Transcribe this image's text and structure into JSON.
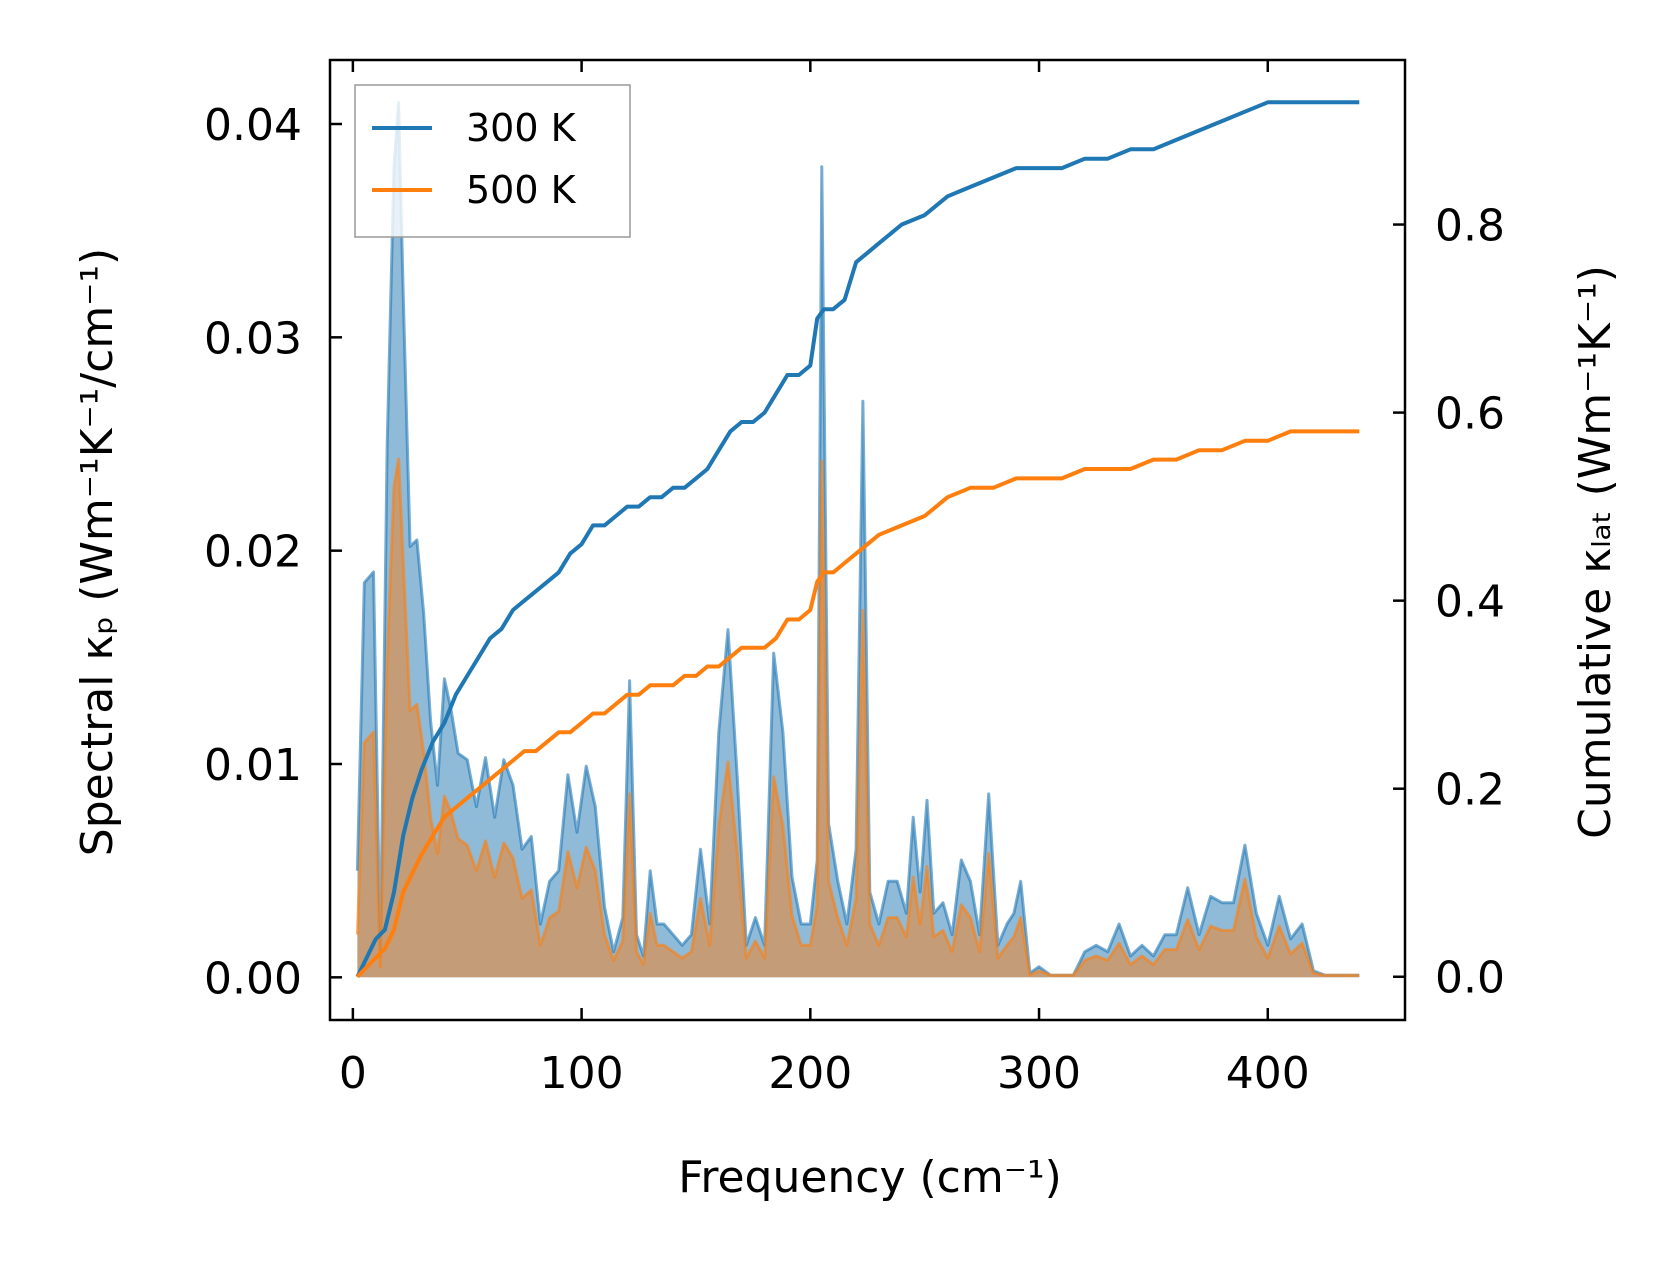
{
  "chart_data": {
    "type": "line",
    "title": "",
    "xlabel": "Frequency (cm⁻¹)",
    "ylabel_left": "Spectral κₚ (Wm⁻¹K⁻¹/cm⁻¹)",
    "ylabel_right": "Cumulative κₗₐₜ (Wm⁻¹K⁻¹)",
    "xlim": [
      -10,
      460
    ],
    "ylim_left": [
      -0.002,
      0.043
    ],
    "ylim_right": [
      -0.046,
      0.975
    ],
    "x_ticks": [
      0,
      100,
      200,
      300,
      400
    ],
    "x_tick_labels": [
      "0",
      "100",
      "200",
      "300",
      "400"
    ],
    "y_left_ticks": [
      0.0,
      0.01,
      0.02,
      0.03,
      0.04
    ],
    "y_left_tick_labels": [
      "0.00",
      "0.01",
      "0.02",
      "0.03",
      "0.04"
    ],
    "y_right_ticks": [
      0.0,
      0.2,
      0.4,
      0.6,
      0.8
    ],
    "y_right_tick_labels": [
      "0.0",
      "0.2",
      "0.4",
      "0.6",
      "0.8"
    ],
    "legend": {
      "position": "top-left",
      "entries": [
        "300 K",
        "500 K"
      ]
    },
    "colors": {
      "s300": "#1f77b4",
      "s500": "#ff7f0e",
      "fill300": "#1f77b4",
      "fill500": "#d1955e"
    },
    "series": [
      {
        "name": "300 K",
        "spectral_x": [
          2,
          5,
          9,
          12,
          15,
          18,
          20,
          22,
          25,
          28,
          31,
          34,
          37,
          40,
          43,
          46,
          50,
          54,
          58,
          62,
          66,
          70,
          74,
          78,
          82,
          86,
          90,
          94,
          98,
          102,
          106,
          110,
          114,
          118,
          121,
          124,
          127,
          130,
          133,
          136,
          140,
          144,
          148,
          152,
          156,
          160,
          164,
          168,
          172,
          176,
          180,
          184,
          188,
          192,
          196,
          200,
          203,
          205,
          208,
          212,
          216,
          220,
          223,
          226,
          230,
          234,
          238,
          242,
          245,
          248,
          251,
          254,
          258,
          262,
          266,
          270,
          274,
          278,
          282,
          286,
          289,
          292,
          296,
          300,
          305,
          310,
          315,
          320,
          325,
          330,
          335,
          340,
          345,
          350,
          355,
          360,
          365,
          370,
          375,
          380,
          385,
          390,
          395,
          400,
          405,
          410,
          415,
          420,
          425,
          430,
          435,
          440
        ],
        "spectral_y": [
          0.005,
          0.0185,
          0.019,
          0.001,
          0.025,
          0.038,
          0.041,
          0.032,
          0.0202,
          0.0205,
          0.017,
          0.012,
          0.009,
          0.014,
          0.0125,
          0.0105,
          0.0102,
          0.008,
          0.0103,
          0.0075,
          0.0102,
          0.009,
          0.006,
          0.0066,
          0.0025,
          0.0045,
          0.005,
          0.0095,
          0.0068,
          0.0099,
          0.008,
          0.0033,
          0.0012,
          0.0028,
          0.0139,
          0.002,
          0.001,
          0.005,
          0.0025,
          0.0025,
          0.002,
          0.0015,
          0.002,
          0.006,
          0.0025,
          0.0115,
          0.0163,
          0.0095,
          0.0015,
          0.0028,
          0.0015,
          0.0152,
          0.0115,
          0.0047,
          0.0025,
          0.0025,
          0.0055,
          0.038,
          0.0072,
          0.0045,
          0.0025,
          0.006,
          0.027,
          0.004,
          0.0025,
          0.0045,
          0.0045,
          0.003,
          0.0075,
          0.004,
          0.0083,
          0.003,
          0.0035,
          0.002,
          0.0055,
          0.0045,
          0.002,
          0.0086,
          0.0015,
          0.0025,
          0.003,
          0.0045,
          0.0002,
          0.0005,
          0.0001,
          0.0001,
          0.0001,
          0.0012,
          0.0015,
          0.0012,
          0.0025,
          0.001,
          0.0015,
          0.001,
          0.002,
          0.002,
          0.0042,
          0.002,
          0.0038,
          0.0035,
          0.0035,
          0.0062,
          0.003,
          0.0015,
          0.0038,
          0.0018,
          0.0025,
          0.0003,
          0.0001,
          0.0001,
          0.0001,
          0.0001
        ],
        "cumulative_x": [
          2,
          6,
          10,
          14,
          18,
          22,
          26,
          30,
          35,
          40,
          45,
          50,
          55,
          60,
          65,
          70,
          75,
          80,
          85,
          90,
          95,
          100,
          105,
          110,
          115,
          120,
          125,
          130,
          135,
          140,
          145,
          150,
          155,
          160,
          165,
          170,
          175,
          180,
          185,
          190,
          195,
          200,
          203,
          206,
          210,
          215,
          220,
          225,
          230,
          240,
          250,
          260,
          270,
          280,
          290,
          300,
          310,
          320,
          330,
          340,
          350,
          360,
          370,
          380,
          390,
          400,
          410,
          420,
          430,
          440
        ],
        "cumulative_y": [
          0.0,
          0.02,
          0.04,
          0.05,
          0.09,
          0.15,
          0.19,
          0.22,
          0.25,
          0.27,
          0.3,
          0.32,
          0.34,
          0.36,
          0.37,
          0.39,
          0.4,
          0.41,
          0.42,
          0.43,
          0.45,
          0.46,
          0.48,
          0.48,
          0.49,
          0.5,
          0.5,
          0.51,
          0.51,
          0.52,
          0.52,
          0.53,
          0.54,
          0.56,
          0.58,
          0.59,
          0.59,
          0.6,
          0.62,
          0.64,
          0.64,
          0.65,
          0.7,
          0.71,
          0.71,
          0.72,
          0.76,
          0.77,
          0.78,
          0.8,
          0.81,
          0.83,
          0.84,
          0.85,
          0.86,
          0.86,
          0.86,
          0.87,
          0.87,
          0.88,
          0.88,
          0.89,
          0.9,
          0.91,
          0.92,
          0.93,
          0.93,
          0.93,
          0.93,
          0.93
        ]
      },
      {
        "name": "500 K",
        "spectral_x": [
          2,
          5,
          9,
          12,
          15,
          18,
          20,
          22,
          25,
          28,
          31,
          34,
          37,
          40,
          43,
          46,
          50,
          54,
          58,
          62,
          66,
          70,
          74,
          78,
          82,
          86,
          90,
          94,
          98,
          102,
          106,
          110,
          114,
          118,
          121,
          124,
          127,
          130,
          133,
          136,
          140,
          144,
          148,
          152,
          156,
          160,
          164,
          168,
          172,
          176,
          180,
          184,
          188,
          192,
          196,
          200,
          203,
          205,
          208,
          212,
          216,
          220,
          223,
          226,
          230,
          234,
          238,
          242,
          245,
          248,
          251,
          254,
          258,
          262,
          266,
          270,
          274,
          278,
          282,
          286,
          289,
          292,
          296,
          300,
          305,
          310,
          315,
          320,
          325,
          330,
          335,
          340,
          345,
          350,
          355,
          360,
          365,
          370,
          375,
          380,
          385,
          390,
          395,
          400,
          405,
          410,
          415,
          420,
          425,
          430,
          435,
          440
        ],
        "spectral_y": [
          0.002,
          0.011,
          0.0115,
          0.0005,
          0.015,
          0.023,
          0.0243,
          0.0195,
          0.0125,
          0.0128,
          0.0105,
          0.0075,
          0.0058,
          0.0085,
          0.0077,
          0.0065,
          0.0062,
          0.005,
          0.0064,
          0.0047,
          0.0063,
          0.0056,
          0.0037,
          0.0041,
          0.0015,
          0.0028,
          0.0031,
          0.0059,
          0.0042,
          0.0061,
          0.005,
          0.002,
          0.0008,
          0.0017,
          0.0086,
          0.0012,
          0.0006,
          0.003,
          0.0015,
          0.0015,
          0.0012,
          0.0009,
          0.0012,
          0.0037,
          0.0015,
          0.0071,
          0.0101,
          0.0059,
          0.0009,
          0.0017,
          0.0009,
          0.0094,
          0.0071,
          0.0029,
          0.0015,
          0.0015,
          0.0034,
          0.0242,
          0.0045,
          0.0028,
          0.0015,
          0.0037,
          0.0172,
          0.0025,
          0.0015,
          0.0028,
          0.0028,
          0.0019,
          0.0047,
          0.0025,
          0.0052,
          0.0019,
          0.0022,
          0.0012,
          0.0034,
          0.0028,
          0.0012,
          0.0058,
          0.0009,
          0.0015,
          0.0019,
          0.0028,
          0.0001,
          0.0003,
          0.0001,
          0.0001,
          0.0001,
          0.0008,
          0.001,
          0.0008,
          0.0016,
          0.0006,
          0.001,
          0.0006,
          0.0013,
          0.0013,
          0.0027,
          0.0013,
          0.0024,
          0.0022,
          0.0022,
          0.0046,
          0.0019,
          0.0009,
          0.0024,
          0.0011,
          0.0016,
          0.0002,
          0.0001,
          0.0001,
          0.0001,
          0.0001
        ],
        "cumulative_x": [
          2,
          6,
          10,
          14,
          18,
          22,
          26,
          30,
          35,
          40,
          45,
          50,
          55,
          60,
          65,
          70,
          75,
          80,
          85,
          90,
          95,
          100,
          105,
          110,
          115,
          120,
          125,
          130,
          135,
          140,
          145,
          150,
          155,
          160,
          165,
          170,
          175,
          180,
          185,
          190,
          195,
          200,
          203,
          206,
          210,
          215,
          220,
          225,
          230,
          240,
          250,
          260,
          270,
          280,
          290,
          300,
          310,
          320,
          330,
          340,
          350,
          360,
          370,
          380,
          390,
          400,
          410,
          420,
          430,
          440
        ],
        "cumulative_y": [
          0.0,
          0.01,
          0.02,
          0.03,
          0.05,
          0.09,
          0.11,
          0.13,
          0.15,
          0.17,
          0.18,
          0.19,
          0.2,
          0.21,
          0.22,
          0.23,
          0.24,
          0.24,
          0.25,
          0.26,
          0.26,
          0.27,
          0.28,
          0.28,
          0.29,
          0.3,
          0.3,
          0.31,
          0.31,
          0.31,
          0.32,
          0.32,
          0.33,
          0.33,
          0.34,
          0.35,
          0.35,
          0.35,
          0.36,
          0.38,
          0.38,
          0.39,
          0.42,
          0.43,
          0.43,
          0.44,
          0.45,
          0.46,
          0.47,
          0.48,
          0.49,
          0.51,
          0.52,
          0.52,
          0.53,
          0.53,
          0.53,
          0.54,
          0.54,
          0.54,
          0.55,
          0.55,
          0.56,
          0.56,
          0.57,
          0.57,
          0.58,
          0.58,
          0.58,
          0.58
        ]
      }
    ]
  }
}
